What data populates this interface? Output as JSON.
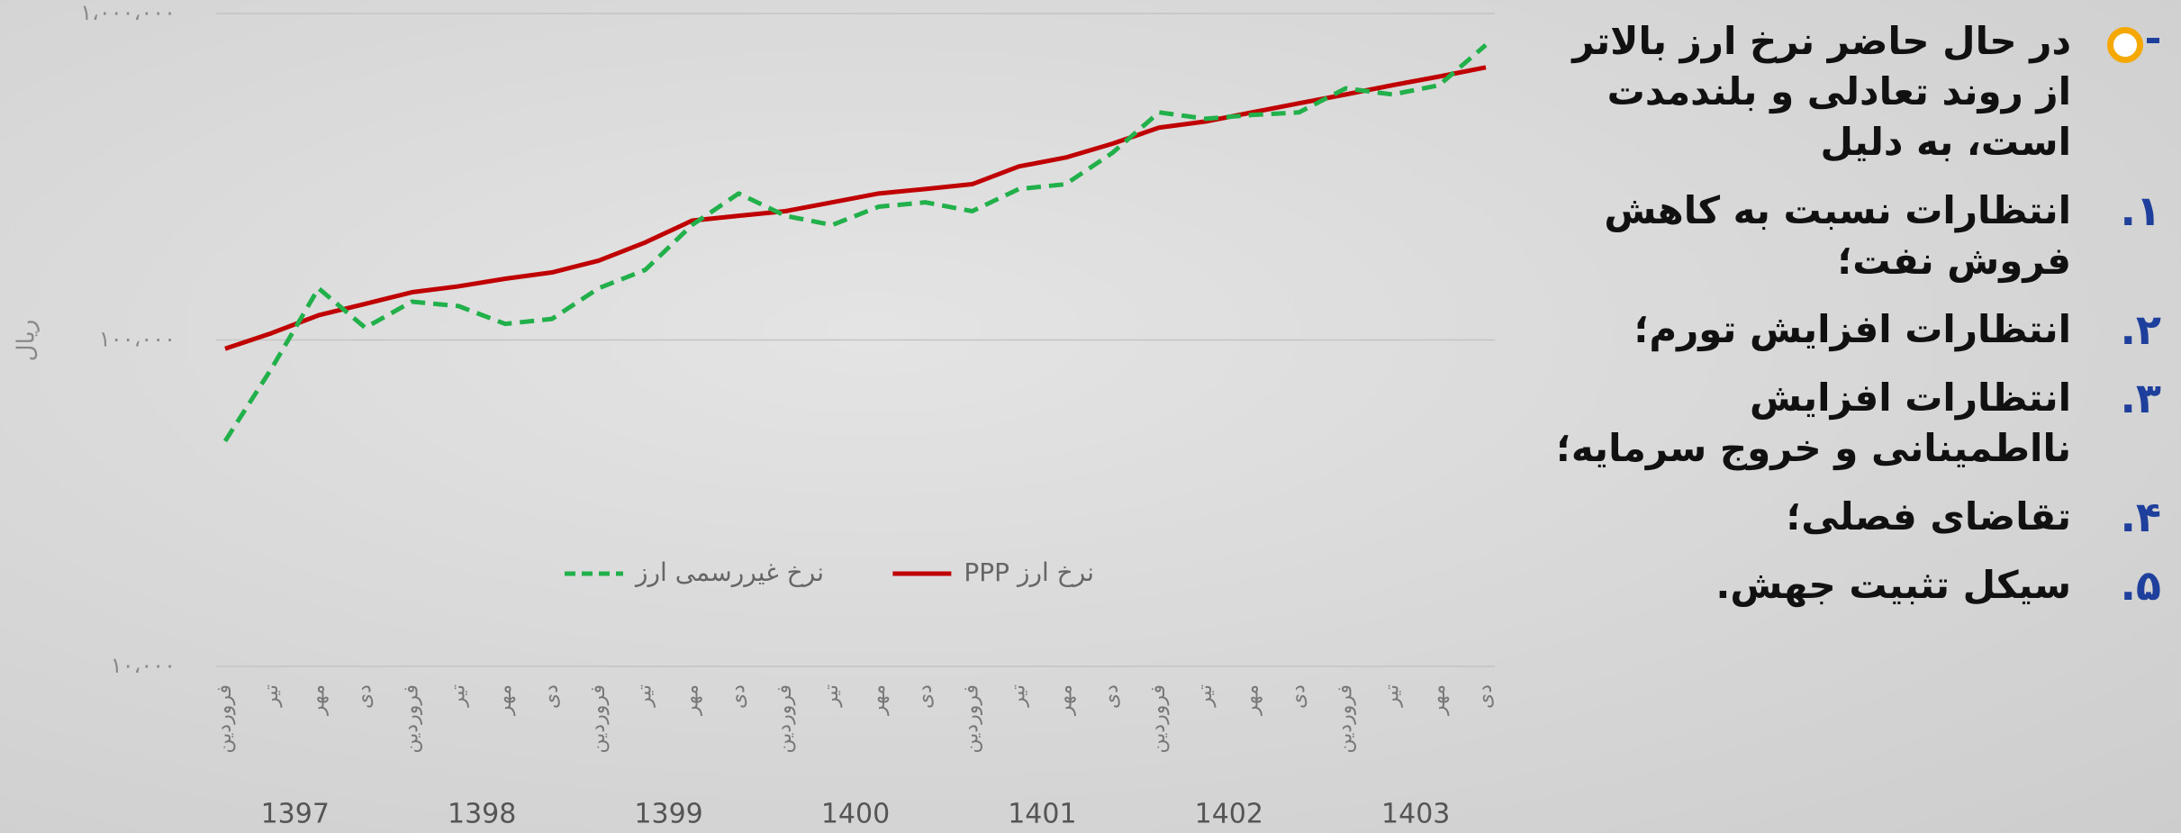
{
  "chart_data": {
    "type": "line",
    "y_label": "ریال",
    "categories": [
      "فروردین",
      "تیر",
      "مهر",
      "دی",
      "فروردین",
      "تیر",
      "مهر",
      "دی",
      "فروردین",
      "تیر",
      "مهر",
      "دی",
      "فروردین",
      "تیر",
      "مهر",
      "دی",
      "فروردین",
      "تیر",
      "مهر",
      "دی",
      "فروردین",
      "تیر",
      "مهر",
      "دی",
      "فروردین",
      "تیر",
      "مهر",
      "دی"
    ],
    "category_groups": [
      "1397",
      "1398",
      "1399",
      "1400",
      "1401",
      "1402",
      "1403"
    ],
    "series": [
      {
        "name": "نرخ ارز PPP",
        "color": "#c00000",
        "dashed": false,
        "values": [
          94000,
          105000,
          119000,
          129000,
          140000,
          146000,
          154000,
          161000,
          175000,
          199000,
          232000,
          240000,
          248000,
          264000,
          281000,
          290000,
          300000,
          340000,
          362000,
          399000,
          447000,
          467000,
          498000,
          531000,
          565000,
          603000,
          641000,
          684000
        ]
      },
      {
        "name": "نرخ غیررسمی ارز",
        "color": "#22b04b",
        "dashed": true,
        "values": [
          49000,
          82000,
          144000,
          109000,
          131000,
          127000,
          112000,
          116000,
          144000,
          164000,
          225000,
          281000,
          240000,
          225000,
          256000,
          264000,
          248000,
          290000,
          300000,
          374000,
          498000,
          476000,
          489000,
          498000,
          590000,
          565000,
          603000,
          801000
        ]
      }
    ],
    "log_y": true,
    "ylim": [
      10000,
      1000000
    ],
    "yticks": [
      {
        "value": 10000,
        "label": "۱۰،۰۰۰"
      },
      {
        "value": 100000,
        "label": "۱۰۰،۰۰۰"
      },
      {
        "value": 1000000,
        "label": "۱،۰۰۰،۰۰۰"
      }
    ],
    "grid": true,
    "legend": "bottom"
  },
  "text_panel": {
    "intro": "در حال حاضر نرخ ارز بالاتر از روند تعادلی و بلندمدت است، به دلیل",
    "items": [
      {
        "number": "۱.",
        "text": "انتظارات نسبت به کاهش فروش نفت؛"
      },
      {
        "number": "۲.",
        "text": "انتظارات افزایش تورم؛"
      },
      {
        "number": "۳.",
        "text": "انتظارات افزایش نااطمینانی و خروج سرمایه؛"
      },
      {
        "number": "۴.",
        "text": "تقاضای فصلی؛"
      },
      {
        "number": "۵.",
        "text": "سیکل تثبیت جهش."
      }
    ]
  }
}
